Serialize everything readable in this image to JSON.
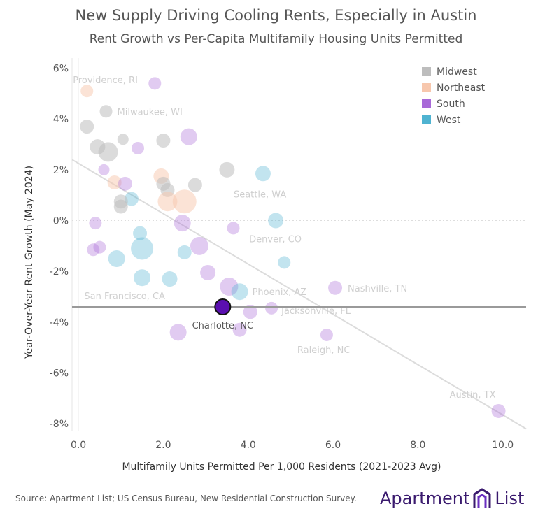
{
  "title": "New Supply Driving Cooling Rents, Especially in Austin",
  "subtitle": "Rent Growth vs Per-Capita Multifamily Housing Units Permitted",
  "source": "Source: Apartment List; US Census Bureau, New Residential Construction Survey.",
  "brand": {
    "left": "Apartment",
    "right": "List"
  },
  "colors": {
    "Midwest": "#bdbdbd",
    "Northeast": "#f7c7ad",
    "South": "#a869d8",
    "West": "#4fb3d1",
    "highlight": "#5a0fb0"
  },
  "chart_data": {
    "type": "scatter",
    "title": "New Supply Driving Cooling Rents, Especially in Austin",
    "subtitle": "Rent Growth vs Per-Capita Multifamily Housing Units Permitted",
    "xlabel": "Multifamily Units Permitted Per 1,000 Residents (2021-2023 Avg)",
    "ylabel": "Year-Over-Year Rent Growth (May 2024)",
    "xlim": [
      -0.15,
      10.55
    ],
    "ylim": [
      -8.3,
      6.4
    ],
    "xticks": [
      "0.0",
      "2.0",
      "4.0",
      "6.0",
      "8.0",
      "10.0"
    ],
    "xtick_values": [
      0,
      2,
      4,
      6,
      8,
      10
    ],
    "yticks": [
      "6%",
      "4%",
      "2%",
      "0%",
      "-2%",
      "-4%",
      "-6%",
      "-8%"
    ],
    "ytick_values": [
      6,
      4,
      2,
      0,
      -2,
      -4,
      -6,
      -8
    ],
    "reference_line_y": -3.4,
    "trend_line": {
      "x": [
        -0.15,
        10.55
      ],
      "y": [
        2.4,
        -8.2
      ]
    },
    "legend": [
      "Midwest",
      "Northeast",
      "South",
      "West"
    ],
    "legend_position": "top-right",
    "highlight": {
      "label": "Charlotte, NC",
      "x": 3.4,
      "y": -3.4,
      "region": "South"
    },
    "points": [
      {
        "x": 0.2,
        "y": 5.1,
        "region": "Northeast",
        "size": 9,
        "label": "Providence, RI"
      },
      {
        "x": 1.8,
        "y": 5.4,
        "region": "South",
        "size": 9
      },
      {
        "x": 0.65,
        "y": 4.3,
        "region": "Midwest",
        "size": 9,
        "label": "Milwaukee, WI"
      },
      {
        "x": 0.2,
        "y": 3.7,
        "region": "Midwest",
        "size": 10
      },
      {
        "x": 1.05,
        "y": 3.2,
        "region": "Midwest",
        "size": 8
      },
      {
        "x": 2.0,
        "y": 3.15,
        "region": "Midwest",
        "size": 10
      },
      {
        "x": 2.6,
        "y": 3.3,
        "region": "South",
        "size": 12
      },
      {
        "x": 0.45,
        "y": 2.9,
        "region": "Midwest",
        "size": 11
      },
      {
        "x": 0.7,
        "y": 2.7,
        "region": "Midwest",
        "size": 14
      },
      {
        "x": 1.4,
        "y": 2.85,
        "region": "South",
        "size": 9
      },
      {
        "x": 3.5,
        "y": 2.0,
        "region": "Midwest",
        "size": 11
      },
      {
        "x": 4.35,
        "y": 1.85,
        "region": "West",
        "size": 11,
        "label": "Seattle, WA"
      },
      {
        "x": 0.6,
        "y": 2.0,
        "region": "South",
        "size": 8
      },
      {
        "x": 1.95,
        "y": 1.75,
        "region": "Northeast",
        "size": 11
      },
      {
        "x": 0.85,
        "y": 1.5,
        "region": "Northeast",
        "size": 10
      },
      {
        "x": 1.1,
        "y": 1.45,
        "region": "South",
        "size": 10
      },
      {
        "x": 2.0,
        "y": 1.45,
        "region": "Midwest",
        "size": 10
      },
      {
        "x": 2.1,
        "y": 1.2,
        "region": "Midwest",
        "size": 10
      },
      {
        "x": 2.75,
        "y": 1.4,
        "region": "Midwest",
        "size": 10
      },
      {
        "x": 1.25,
        "y": 0.85,
        "region": "West",
        "size": 10
      },
      {
        "x": 1.0,
        "y": 0.75,
        "region": "Midwest",
        "size": 10
      },
      {
        "x": 1.0,
        "y": 0.55,
        "region": "Midwest",
        "size": 10
      },
      {
        "x": 2.1,
        "y": 0.75,
        "region": "Northeast",
        "size": 14
      },
      {
        "x": 2.5,
        "y": 0.75,
        "region": "Northeast",
        "size": 17
      },
      {
        "x": 4.65,
        "y": 0.0,
        "region": "West",
        "size": 11,
        "label": "Denver, CO"
      },
      {
        "x": 2.45,
        "y": -0.1,
        "region": "South",
        "size": 12
      },
      {
        "x": 0.4,
        "y": -0.1,
        "region": "South",
        "size": 9
      },
      {
        "x": 3.65,
        "y": -0.3,
        "region": "South",
        "size": 9
      },
      {
        "x": 1.45,
        "y": -0.5,
        "region": "West",
        "size": 10
      },
      {
        "x": 1.5,
        "y": -1.1,
        "region": "West",
        "size": 16
      },
      {
        "x": 2.85,
        "y": -1.0,
        "region": "South",
        "size": 13
      },
      {
        "x": 0.35,
        "y": -1.15,
        "region": "South",
        "size": 9
      },
      {
        "x": 0.5,
        "y": -1.05,
        "region": "South",
        "size": 9
      },
      {
        "x": 2.5,
        "y": -1.25,
        "region": "West",
        "size": 10
      },
      {
        "x": 0.9,
        "y": -1.5,
        "region": "West",
        "size": 12
      },
      {
        "x": 4.85,
        "y": -1.65,
        "region": "West",
        "size": 9
      },
      {
        "x": 3.05,
        "y": -2.05,
        "region": "South",
        "size": 11
      },
      {
        "x": 1.5,
        "y": -2.25,
        "region": "West",
        "size": 12
      },
      {
        "x": 2.15,
        "y": -2.3,
        "region": "West",
        "size": 11
      },
      {
        "x": 3.55,
        "y": -2.6,
        "region": "South",
        "size": 13
      },
      {
        "x": 3.8,
        "y": -2.8,
        "region": "West",
        "size": 12,
        "label": "Phoenix, AZ"
      },
      {
        "x": 6.05,
        "y": -2.65,
        "region": "South",
        "size": 10,
        "label": "Nashville, TN"
      },
      {
        "x": 4.55,
        "y": -3.45,
        "region": "South",
        "size": 9,
        "label": "Jacksonville, FL"
      },
      {
        "x": 4.05,
        "y": -3.6,
        "region": "South",
        "size": 10
      },
      {
        "x": 3.8,
        "y": -4.3,
        "region": "South",
        "size": 10
      },
      {
        "x": 2.35,
        "y": -4.4,
        "region": "South",
        "size": 12
      },
      {
        "x": 5.85,
        "y": -4.5,
        "region": "South",
        "size": 9,
        "label": "Raleigh, NC"
      },
      {
        "x": 9.9,
        "y": -7.5,
        "region": "South",
        "size": 10,
        "label": "Austin, TX"
      },
      {
        "x": 0.45,
        "y": -3.45,
        "region": "West",
        "size": 0.1,
        "label": "San Francisco, CA"
      }
    ]
  }
}
